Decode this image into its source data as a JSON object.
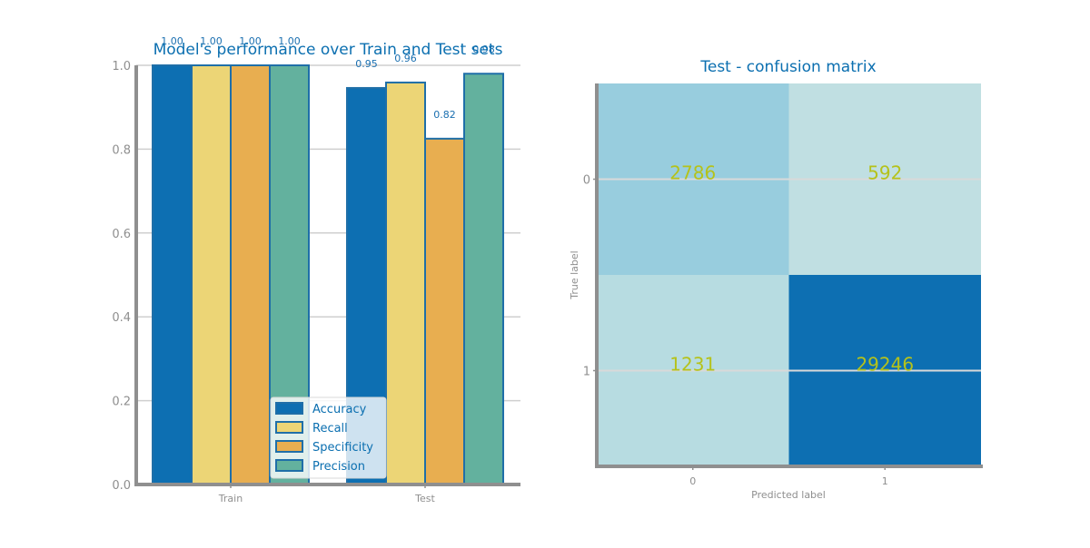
{
  "colors": {
    "title": "#0b6fb0",
    "tick_text": "#8f8f8f",
    "axis": "#8f8f8f",
    "grid": "#cfcfcf",
    "bar_edge": "#1f6fa8",
    "value_label": "#1a6fb0",
    "cm_text": "#b5c21a",
    "cm_high": "#0d6fb2",
    "cm_mid": "#98cdde",
    "cm_low": "#b7dce1",
    "cm_lowest": "#c0dfe2"
  },
  "chart_data": [
    {
      "type": "bar",
      "title": "Model's performance over Train and Test sets",
      "categories": [
        "Train",
        "Test"
      ],
      "series": [
        {
          "name": "Accuracy",
          "values": [
            1.0,
            0.946
          ],
          "labels": [
            "1.00",
            "0.95"
          ],
          "color": "#0d6fb2"
        },
        {
          "name": "Recall",
          "values": [
            1.0,
            0.959
          ],
          "labels": [
            "1.00",
            "0.96"
          ],
          "color": "#ecd576"
        },
        {
          "name": "Specificity",
          "values": [
            1.0,
            0.825
          ],
          "labels": [
            "1.00",
            "0.82"
          ],
          "color": "#e8ae50"
        },
        {
          "name": "Precision",
          "values": [
            1.0,
            0.98
          ],
          "labels": [
            "1.00",
            "0.98"
          ],
          "color": "#63b19e"
        }
      ],
      "ylim": [
        0,
        1.0
      ],
      "yticks": [
        "0.0",
        "0.2",
        "0.4",
        "0.6",
        "0.8",
        "1.0"
      ],
      "xlabel": "",
      "ylabel": "",
      "grid": true,
      "legend": "lower center"
    },
    {
      "type": "heatmap",
      "title": "Test - confusion matrix",
      "xlabel": "Predicted label",
      "ylabel": "True label",
      "xticks": [
        "0",
        "1"
      ],
      "yticks": [
        "0",
        "1"
      ],
      "cells": [
        [
          2786,
          592
        ],
        [
          1231,
          29246
        ]
      ],
      "cell_colors": [
        [
          "#98cdde",
          "#c0dfe2"
        ],
        [
          "#b7dce1",
          "#0d6fb2"
        ]
      ]
    }
  ]
}
